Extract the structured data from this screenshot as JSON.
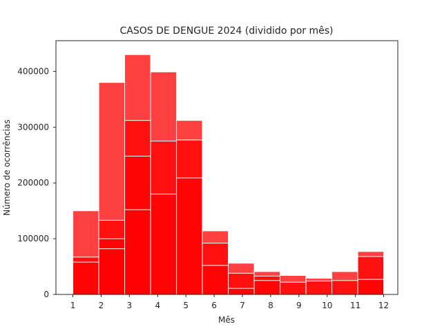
{
  "chart_data": {
    "type": "bar",
    "title": "CASOS DE DENGUE 2024 (dividido por mês)",
    "xlabel": "Mês",
    "ylabel": "Número de ocorrências",
    "xlim": [
      0.4,
      12.5
    ],
    "ylim": [
      0,
      455000
    ],
    "x_ticks": [
      1,
      2,
      3,
      4,
      5,
      6,
      7,
      8,
      9,
      10,
      11,
      12
    ],
    "y_ticks": [
      0,
      100000,
      200000,
      300000,
      400000
    ],
    "grid": false,
    "bar_color": "#ff0000",
    "edge_color": "#ffffff",
    "bins": [
      {
        "x0": 1.0,
        "x1": 1.9167,
        "values": [
          150000,
          67000,
          58000
        ]
      },
      {
        "x0": 1.9167,
        "x1": 2.8333,
        "values": [
          380000,
          133000,
          100000,
          82000
        ]
      },
      {
        "x0": 2.8333,
        "x1": 3.75,
        "values": [
          430000,
          312000,
          248000,
          152000
        ]
      },
      {
        "x0": 3.75,
        "x1": 4.6667,
        "values": [
          399000,
          275000,
          180000
        ]
      },
      {
        "x0": 4.6667,
        "x1": 5.5833,
        "values": [
          312000,
          277000,
          209000
        ]
      },
      {
        "x0": 5.5833,
        "x1": 6.5,
        "values": [
          114000,
          92000,
          52000
        ]
      },
      {
        "x0": 6.5,
        "x1": 7.4167,
        "values": [
          56000,
          38000,
          11000
        ]
      },
      {
        "x0": 7.4167,
        "x1": 8.3333,
        "values": [
          41000,
          33000,
          25000
        ]
      },
      {
        "x0": 8.3333,
        "x1": 9.25,
        "values": [
          34000,
          22000
        ]
      },
      {
        "x0": 9.25,
        "x1": 10.1667,
        "values": [
          29000,
          24000
        ]
      },
      {
        "x0": 10.1667,
        "x1": 11.0833,
        "values": [
          41000,
          25000
        ]
      },
      {
        "x0": 11.0833,
        "x1": 12.0,
        "values": [
          77000,
          68000,
          27000
        ]
      }
    ]
  }
}
